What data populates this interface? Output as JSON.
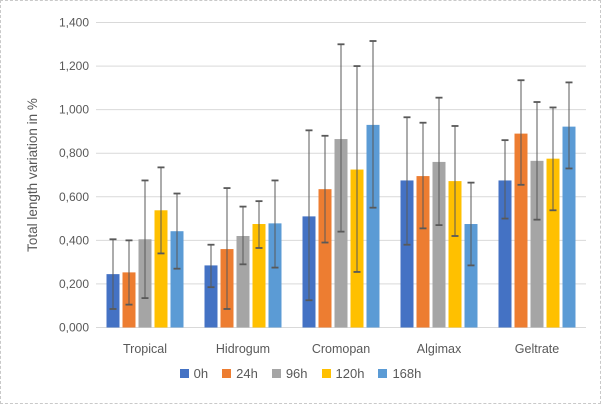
{
  "chart_data": {
    "type": "bar",
    "title": "",
    "xlabel": "",
    "ylabel": "Total length variation in %",
    "ylim": [
      0,
      1.4
    ],
    "ytick_step": 0.2,
    "ytick_labels": [
      "0,000",
      "0,200",
      "0,400",
      "0,600",
      "0,800",
      "1,000",
      "1,200",
      "1,400"
    ],
    "grid": true,
    "legend_position": "bottom",
    "error_bars": true,
    "categories": [
      "Tropical",
      "Hidrogum",
      "Cromopan",
      "Algimax",
      "Geltrate"
    ],
    "series": [
      {
        "name": "0h",
        "color": "#4472C4",
        "values": [
          0.245,
          0.285,
          0.51,
          0.675,
          0.675
        ],
        "err_low": [
          0.085,
          0.185,
          0.125,
          0.38,
          0.5
        ],
        "err_high": [
          0.405,
          0.38,
          0.905,
          0.965,
          0.86
        ]
      },
      {
        "name": "24h",
        "color": "#ED7D31",
        "values": [
          0.253,
          0.36,
          0.635,
          0.695,
          0.89
        ],
        "err_low": [
          0.105,
          0.085,
          0.39,
          0.455,
          0.655
        ],
        "err_high": [
          0.4,
          0.64,
          0.88,
          0.94,
          1.135
        ]
      },
      {
        "name": "96h",
        "color": "#A5A5A5",
        "values": [
          0.405,
          0.42,
          0.865,
          0.76,
          0.765
        ],
        "err_low": [
          0.135,
          0.29,
          0.44,
          0.47,
          0.495
        ],
        "err_high": [
          0.675,
          0.555,
          1.3,
          1.055,
          1.035
        ]
      },
      {
        "name": "120h",
        "color": "#FFC000",
        "values": [
          0.538,
          0.475,
          0.725,
          0.672,
          0.775
        ],
        "err_low": [
          0.34,
          0.365,
          0.255,
          0.42,
          0.538
        ],
        "err_high": [
          0.735,
          0.58,
          1.2,
          0.925,
          1.01
        ]
      },
      {
        "name": "168h",
        "color": "#5B9BD5",
        "values": [
          0.442,
          0.478,
          0.93,
          0.475,
          0.922
        ],
        "err_low": [
          0.27,
          0.275,
          0.55,
          0.285,
          0.73
        ],
        "err_high": [
          0.615,
          0.675,
          1.315,
          0.665,
          1.125
        ]
      }
    ],
    "colors": {
      "gridline": "#D9D9D9",
      "axis_line": "#D9D9D9",
      "error_bar": "#595959",
      "tick_text": "#595959",
      "axis_title_text": "#595959"
    }
  }
}
